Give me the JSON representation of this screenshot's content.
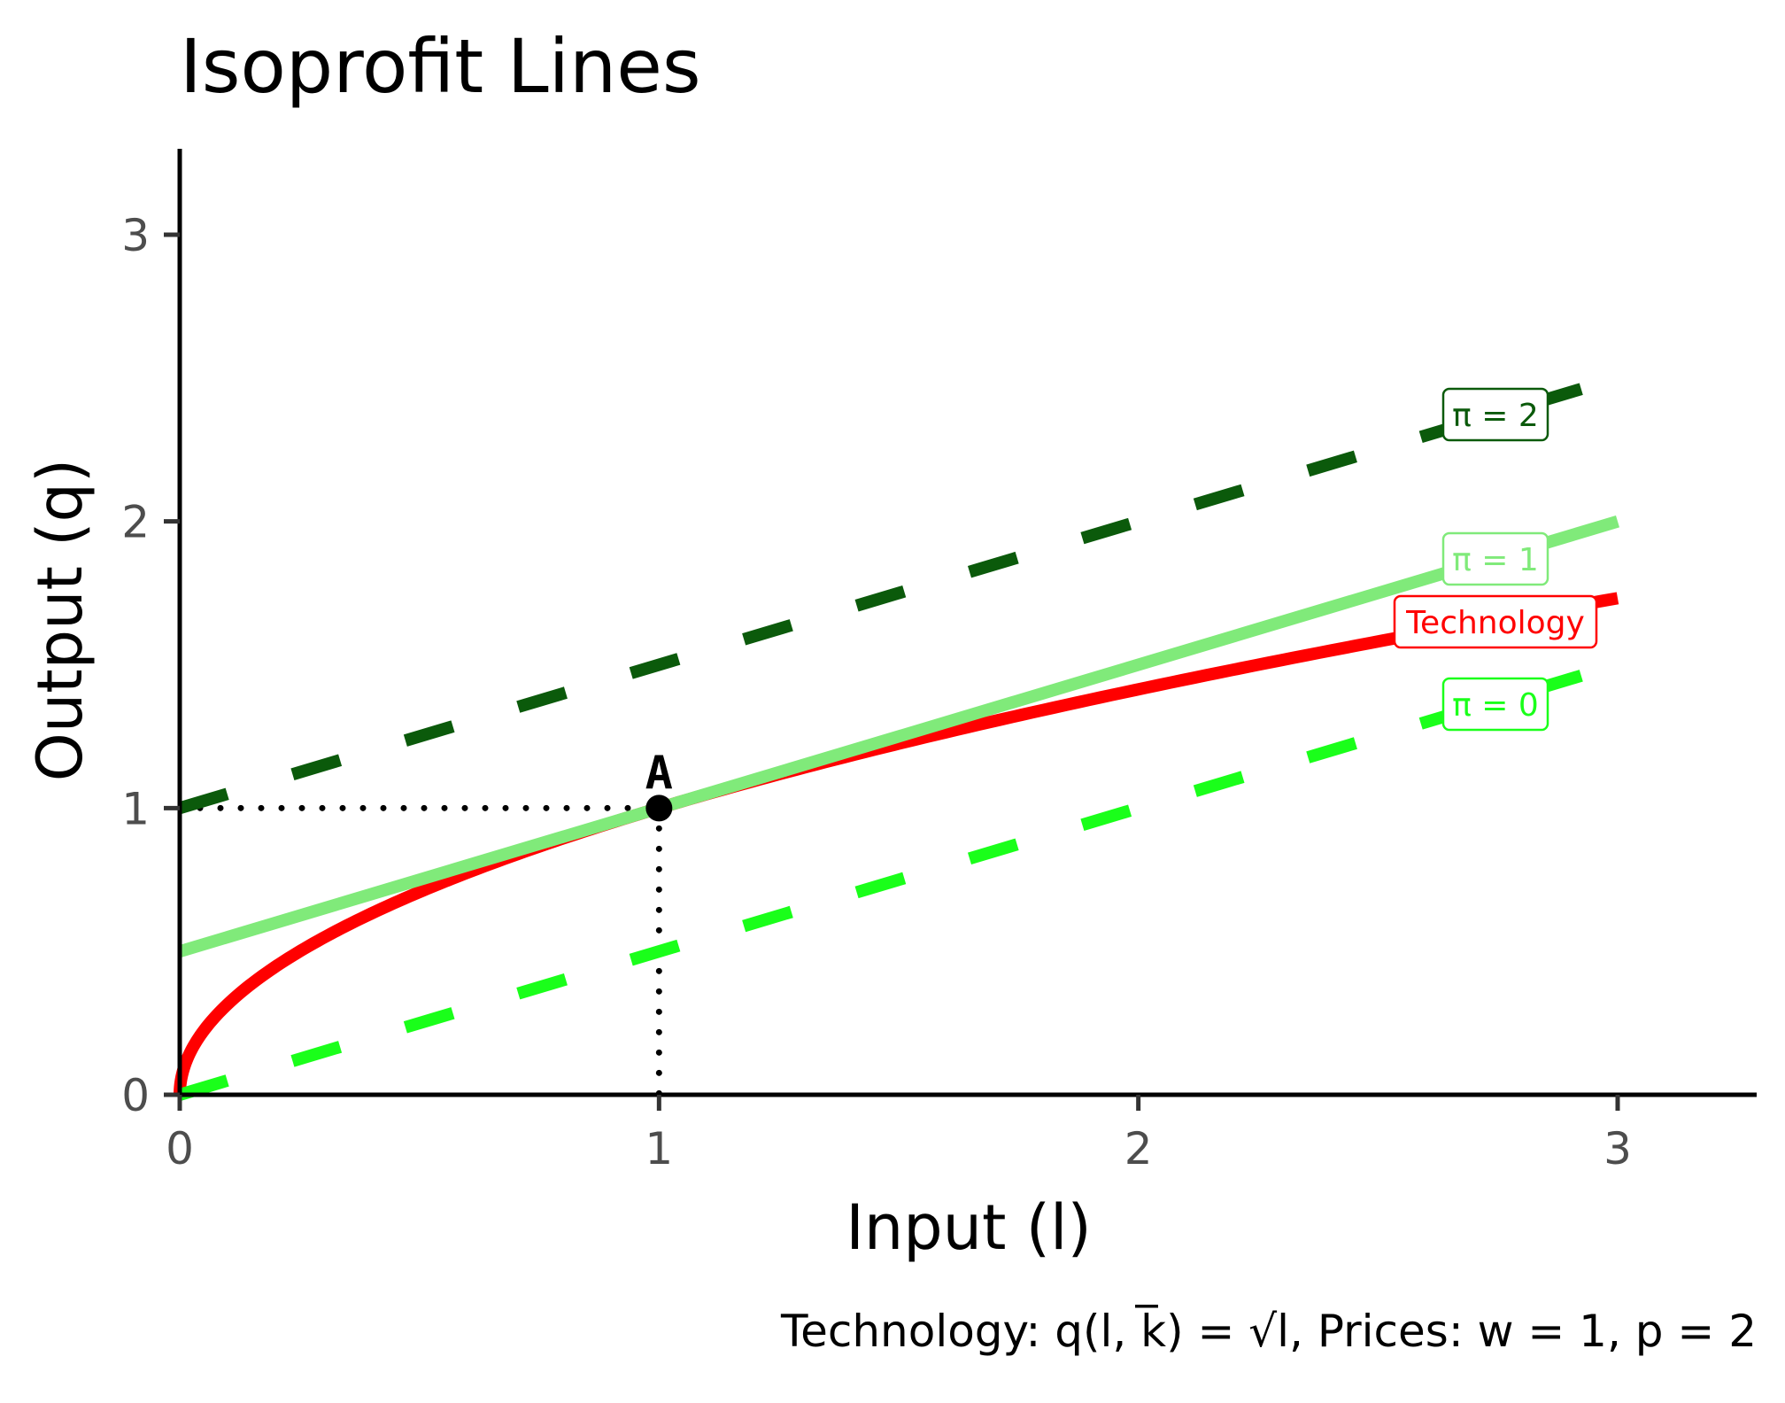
{
  "chart_data": {
    "type": "line",
    "title": "Isoprofit Lines",
    "xlabel": "Input (l)",
    "ylabel": "Output (q)",
    "caption": "Technology: q(l, k̅) = √l, Prices: w = 1, p = 2",
    "xlim": [
      0,
      3.3
    ],
    "ylim": [
      0,
      3.3
    ],
    "xticks": [
      0,
      1,
      2,
      3
    ],
    "yticks": [
      0,
      1,
      2,
      3
    ],
    "x_tick_labels": [
      "0",
      "1",
      "2",
      "3"
    ],
    "y_tick_labels": [
      "0",
      "1",
      "2",
      "3"
    ],
    "grid": false,
    "series": [
      {
        "name": "Technology",
        "function": "sqrt",
        "x": [
          0,
          0.25,
          0.5,
          1,
          1.5,
          2,
          2.5,
          3
        ],
        "values": [
          0,
          0.5,
          0.707,
          1,
          1.225,
          1.414,
          1.581,
          1.732
        ],
        "color": "#ff0000",
        "style": "solid",
        "label": "Technology"
      },
      {
        "name": "π = 0",
        "x": [
          0,
          3
        ],
        "values": [
          0,
          1.5
        ],
        "color": "#1aff1a",
        "style": "dashed",
        "label": "π = 0"
      },
      {
        "name": "π = 1",
        "x": [
          0,
          3
        ],
        "values": [
          0.5,
          2
        ],
        "color": "#80ea7a",
        "style": "solid",
        "label": "π = 1"
      },
      {
        "name": "π = 2",
        "x": [
          0,
          3
        ],
        "values": [
          1,
          2.5
        ],
        "color": "#0b5a0b",
        "style": "dashed",
        "label": "π = 2"
      }
    ],
    "point": {
      "label": "A",
      "x": 1,
      "y": 1
    },
    "guides": {
      "x": 1,
      "y": 1,
      "style": "dotted"
    }
  }
}
